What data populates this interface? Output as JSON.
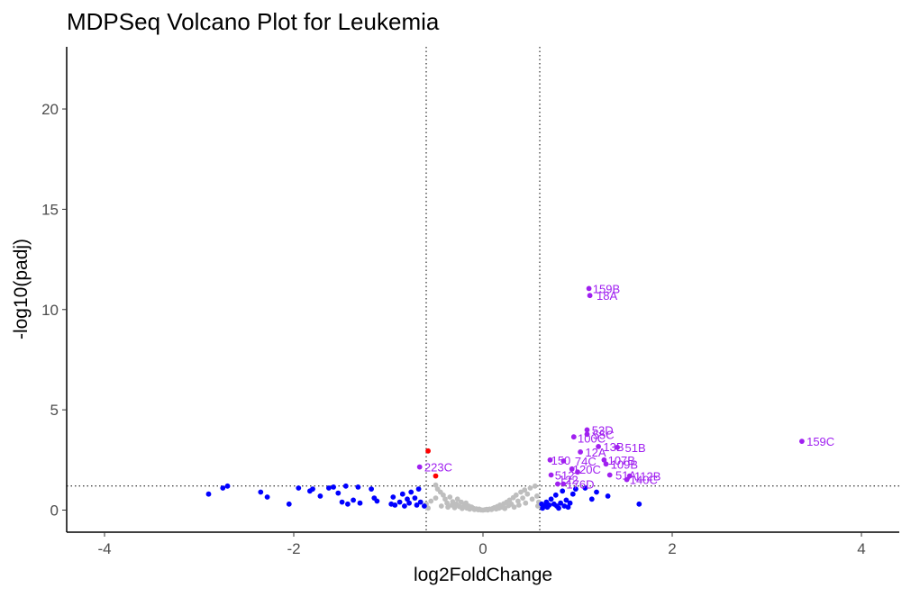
{
  "chart_data": {
    "type": "scatter",
    "title": "MDPSeq Volcano Plot for Leukemia",
    "xlabel": "log2FoldChange",
    "ylabel": "-log10(padj)",
    "xlim": [
      -4.4,
      4.4
    ],
    "ylim": [
      -1.1,
      23.1
    ],
    "xticks": [
      -4,
      -2,
      0,
      2,
      4
    ],
    "yticks": [
      0,
      5,
      10,
      15,
      20
    ],
    "grid": false,
    "legend": "none",
    "thresholds": {
      "x": [
        -0.6,
        0.6
      ],
      "y": 1.2
    },
    "colors": {
      "grey": "#bebebe",
      "blue": "#0000ff",
      "red": "#ff0000",
      "purple": "#a020f0",
      "threshold_line": "#000000"
    },
    "labels": [
      {
        "text": "159B",
        "x": 1.16,
        "y": 11.05,
        "color": "#a020f0"
      },
      {
        "text": "18A",
        "x": 1.2,
        "y": 10.7,
        "color": "#a020f0"
      },
      {
        "text": "159C",
        "x": 3.42,
        "y": 3.43,
        "color": "#a020f0"
      },
      {
        "text": "223C",
        "x": -0.62,
        "y": 2.15,
        "color": "#a020f0"
      },
      {
        "text": "53D",
        "x": 1.15,
        "y": 4.0,
        "color": "#a020f0"
      },
      {
        "text": "55C",
        "x": 1.16,
        "y": 3.78,
        "color": "#a020f0"
      },
      {
        "text": "100C",
        "x": 1.0,
        "y": 3.6,
        "color": "#a020f0"
      },
      {
        "text": "13B",
        "x": 1.27,
        "y": 3.17,
        "color": "#a020f0"
      },
      {
        "text": "51B",
        "x": 1.5,
        "y": 3.13,
        "color": "#a020f0"
      },
      {
        "text": "12A",
        "x": 1.08,
        "y": 2.9,
        "color": "#a020f0"
      },
      {
        "text": "150",
        "x": 0.72,
        "y": 2.5,
        "color": "#a020f0"
      },
      {
        "text": "74C",
        "x": 0.97,
        "y": 2.45,
        "color": "#a020f0"
      },
      {
        "text": "107B",
        "x": 1.32,
        "y": 2.5,
        "color": "#a020f0"
      },
      {
        "text": "109B",
        "x": 1.35,
        "y": 2.3,
        "color": "#a020f0"
      },
      {
        "text": "120C",
        "x": 0.95,
        "y": 2.05,
        "color": "#a020f0"
      },
      {
        "text": "512",
        "x": 0.76,
        "y": 1.75,
        "color": "#a020f0"
      },
      {
        "text": "51A",
        "x": 1.4,
        "y": 1.75,
        "color": "#a020f0"
      },
      {
        "text": "112B",
        "x": 1.6,
        "y": 1.7,
        "color": "#a020f0"
      },
      {
        "text": "140C",
        "x": 1.55,
        "y": 1.52,
        "color": "#a020f0"
      },
      {
        "text": "122",
        "x": 0.8,
        "y": 1.52,
        "color": "#a020f0"
      },
      {
        "text": "176D",
        "x": 0.88,
        "y": 1.3,
        "color": "#a020f0"
      }
    ],
    "series": [
      {
        "color": "#bebebe",
        "points": [
          [
            -0.6,
            0.3
          ],
          [
            -0.55,
            0.45
          ],
          [
            -0.5,
            0.6
          ],
          [
            -0.5,
            1.25
          ],
          [
            -0.48,
            1.05
          ],
          [
            -0.45,
            0.9
          ],
          [
            -0.44,
            0.2
          ],
          [
            -0.42,
            0.75
          ],
          [
            -0.4,
            0.55
          ],
          [
            -0.38,
            0.35
          ],
          [
            -0.37,
            0.15
          ],
          [
            -0.35,
            0.65
          ],
          [
            -0.33,
            0.25
          ],
          [
            -0.32,
            0.42
          ],
          [
            -0.3,
            0.12
          ],
          [
            -0.28,
            0.3
          ],
          [
            -0.27,
            0.55
          ],
          [
            -0.25,
            0.18
          ],
          [
            -0.23,
            0.4
          ],
          [
            -0.22,
            0.08
          ],
          [
            -0.2,
            0.22
          ],
          [
            -0.18,
            0.35
          ],
          [
            -0.17,
            0.1
          ],
          [
            -0.15,
            0.2
          ],
          [
            -0.14,
            0.05
          ],
          [
            -0.12,
            0.15
          ],
          [
            -0.1,
            0.08
          ],
          [
            -0.09,
            0.03
          ],
          [
            -0.07,
            0.06
          ],
          [
            -0.05,
            0.02
          ],
          [
            -0.04,
            0.05
          ],
          [
            -0.02,
            0.01
          ],
          [
            0.0,
            0.0
          ],
          [
            0.02,
            0.02
          ],
          [
            0.04,
            0.04
          ],
          [
            0.05,
            0.01
          ],
          [
            0.07,
            0.05
          ],
          [
            0.09,
            0.03
          ],
          [
            0.1,
            0.07
          ],
          [
            0.12,
            0.12
          ],
          [
            0.14,
            0.06
          ],
          [
            0.15,
            0.18
          ],
          [
            0.17,
            0.1
          ],
          [
            0.18,
            0.25
          ],
          [
            0.2,
            0.15
          ],
          [
            0.22,
            0.32
          ],
          [
            0.23,
            0.08
          ],
          [
            0.25,
            0.4
          ],
          [
            0.27,
            0.22
          ],
          [
            0.28,
            0.5
          ],
          [
            0.3,
            0.3
          ],
          [
            0.32,
            0.62
          ],
          [
            0.33,
            0.15
          ],
          [
            0.35,
            0.75
          ],
          [
            0.37,
            0.45
          ],
          [
            0.38,
            0.25
          ],
          [
            0.4,
            0.9
          ],
          [
            0.42,
            0.6
          ],
          [
            0.44,
            1.0
          ],
          [
            0.45,
            0.35
          ],
          [
            0.47,
            0.8
          ],
          [
            0.5,
            1.1
          ],
          [
            0.52,
            0.55
          ],
          [
            0.55,
            1.2
          ],
          [
            0.57,
            0.7
          ],
          [
            0.58,
            0.2
          ],
          [
            -0.58,
            0.1
          ],
          [
            0.59,
            0.4
          ]
        ]
      },
      {
        "color": "#0000ff",
        "points": [
          [
            -2.9,
            0.8
          ],
          [
            -2.75,
            1.1
          ],
          [
            -2.7,
            1.2
          ],
          [
            -2.35,
            0.9
          ],
          [
            -2.28,
            0.65
          ],
          [
            -2.05,
            0.3
          ],
          [
            -1.95,
            1.1
          ],
          [
            -1.83,
            0.95
          ],
          [
            -1.8,
            1.05
          ],
          [
            -1.72,
            0.7
          ],
          [
            -1.63,
            1.1
          ],
          [
            -1.58,
            1.15
          ],
          [
            -1.53,
            0.85
          ],
          [
            -1.49,
            0.4
          ],
          [
            -1.45,
            1.2
          ],
          [
            -1.43,
            0.3
          ],
          [
            -1.37,
            0.5
          ],
          [
            -1.32,
            1.15
          ],
          [
            -1.3,
            0.35
          ],
          [
            -1.18,
            1.05
          ],
          [
            -1.15,
            0.6
          ],
          [
            -1.12,
            0.45
          ],
          [
            -0.97,
            0.3
          ],
          [
            -0.95,
            0.65
          ],
          [
            -0.93,
            0.25
          ],
          [
            -0.88,
            0.4
          ],
          [
            -0.85,
            0.8
          ],
          [
            -0.83,
            0.2
          ],
          [
            -0.8,
            0.55
          ],
          [
            -0.78,
            0.35
          ],
          [
            -0.76,
            0.9
          ],
          [
            -0.72,
            0.6
          ],
          [
            -0.7,
            0.25
          ],
          [
            -0.68,
            1.05
          ],
          [
            -0.66,
            0.4
          ],
          [
            -0.62,
            0.2
          ],
          [
            0.62,
            0.3
          ],
          [
            0.63,
            0.1
          ],
          [
            0.65,
            0.2
          ],
          [
            0.67,
            0.4
          ],
          [
            0.68,
            0.15
          ],
          [
            0.7,
            0.25
          ],
          [
            0.72,
            0.55
          ],
          [
            0.75,
            0.3
          ],
          [
            0.77,
            0.75
          ],
          [
            0.78,
            0.2
          ],
          [
            0.8,
            0.1
          ],
          [
            0.82,
            0.35
          ],
          [
            0.84,
            0.95
          ],
          [
            0.86,
            0.2
          ],
          [
            0.88,
            0.5
          ],
          [
            0.9,
            0.15
          ],
          [
            0.92,
            0.35
          ],
          [
            0.95,
            0.8
          ],
          [
            0.98,
            1.05
          ],
          [
            1.08,
            1.1
          ],
          [
            1.15,
            0.55
          ],
          [
            1.2,
            0.9
          ],
          [
            1.32,
            0.7
          ],
          [
            1.65,
            0.3
          ]
        ]
      },
      {
        "color": "#ff0000",
        "points": [
          [
            -0.58,
            2.95
          ],
          [
            -0.5,
            1.7
          ]
        ]
      },
      {
        "color": "#a020f0",
        "points": [
          [
            1.12,
            11.05
          ],
          [
            1.13,
            10.7
          ],
          [
            3.37,
            3.43
          ],
          [
            -0.67,
            2.15
          ],
          [
            1.1,
            4.0
          ],
          [
            1.1,
            3.78
          ],
          [
            0.96,
            3.65
          ],
          [
            1.22,
            3.17
          ],
          [
            1.42,
            3.13
          ],
          [
            1.03,
            2.9
          ],
          [
            0.71,
            2.5
          ],
          [
            0.85,
            2.45
          ],
          [
            1.28,
            2.5
          ],
          [
            1.3,
            2.3
          ],
          [
            0.94,
            2.05
          ],
          [
            1.0,
            1.9
          ],
          [
            0.72,
            1.75
          ],
          [
            1.34,
            1.75
          ],
          [
            1.55,
            1.7
          ],
          [
            1.52,
            1.52
          ],
          [
            0.79,
            1.3
          ],
          [
            0.85,
            1.3
          ]
        ]
      }
    ]
  }
}
